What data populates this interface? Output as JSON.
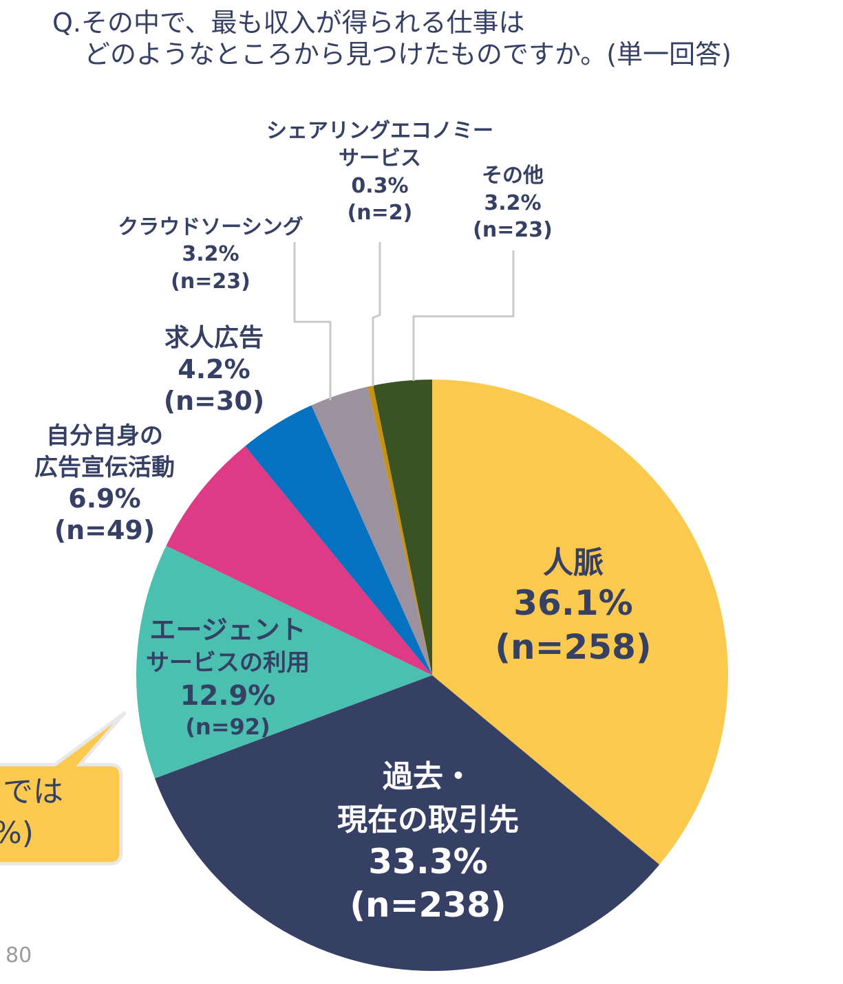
{
  "question": {
    "line1": "Q.その中で、最も収入が得られる仕事は",
    "line2": "どのようなところから見つけたものですか。(単一回答)"
  },
  "chart_data": {
    "type": "pie",
    "slices": [
      {
        "label_lines": [
          "人脈"
        ],
        "percent": "36.1%",
        "n": "(n=258)",
        "value": 36.1,
        "color": "#fbc94e"
      },
      {
        "label_lines": [
          "過去・",
          "現在の取引先"
        ],
        "percent": "33.3%",
        "n": "(n=238)",
        "value": 33.3,
        "color": "#363f64"
      },
      {
        "label_lines": [
          "エージェント",
          "サービスの利用"
        ],
        "percent": "12.9%",
        "n": "(n=92)",
        "value": 12.9,
        "color": "#4bbfb0"
      },
      {
        "label_lines": [
          "自分自身の",
          "広告宣伝活動"
        ],
        "percent": "6.9%",
        "n": "(n=49)",
        "value": 6.9,
        "color": "#de3a85"
      },
      {
        "label_lines": [
          "求人広告"
        ],
        "percent": "4.2%",
        "n": "(n=30)",
        "value": 4.2,
        "color": "#0571c1"
      },
      {
        "label_lines": [
          "クラウドソーシング"
        ],
        "percent": "3.2%",
        "n": "(n=23)",
        "value": 3.2,
        "color": "#9c919f"
      },
      {
        "label_lines": [
          "シェアリングエコノミー",
          "サービス"
        ],
        "percent": "0.3%",
        "n": "(n=2)",
        "value": 0.3,
        "color": "#c69214"
      },
      {
        "label_lines": [
          "その他"
        ],
        "percent": "3.2%",
        "n": "(n=23)",
        "value": 3.2,
        "color": "#3b5323"
      }
    ]
  },
  "callout": {
    "line1": "では",
    "line2": "%)",
    "color": "#fbc94e"
  },
  "page_number": "80"
}
